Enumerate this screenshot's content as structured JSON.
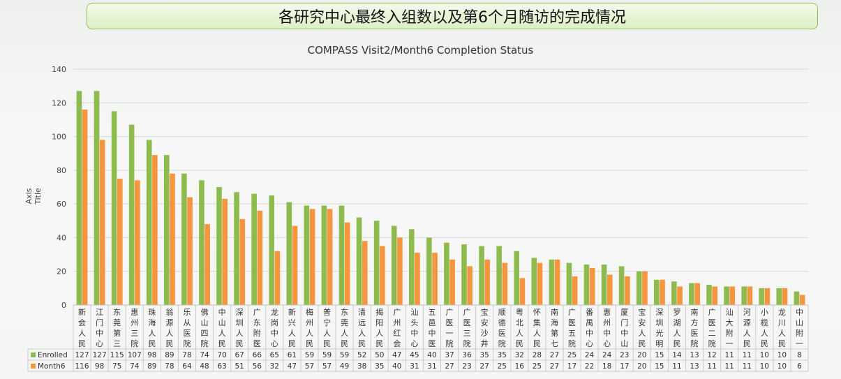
{
  "banner_title": "各研究中心最终入组数以及第6个月随访的完成情况",
  "chart_data": {
    "type": "bar",
    "title": "COMPASS Visit2/Month6 Completion Status",
    "ylabel": "Axis Title",
    "xlabel": "",
    "ylim": [
      0,
      140
    ],
    "yticks": [
      0,
      20,
      40,
      60,
      80,
      100,
      120,
      140
    ],
    "grid": true,
    "legend": "table-bottom",
    "categories": [
      "新会人民",
      "江门中心",
      "东莞第三",
      "惠州三院",
      "珠海人民",
      "翁源人民",
      "乐从医院",
      "佛山四院",
      "中山人民",
      "深圳人民",
      "广东附医",
      "龙岗中心",
      "新兴人民",
      "梅州人民",
      "普宁人民",
      "东莞人民",
      "清远人民",
      "揭阳人民",
      "广州红会",
      "汕头中心",
      "五邑中医",
      "广医一院",
      "广医三院",
      "宝安沙井",
      "顺德医院",
      "粤北人民",
      "怀集人民",
      "南海第七",
      "广医五院",
      "番禺中心",
      "惠州中心",
      "厦门中山",
      "宝安人民",
      "深圳光明",
      "罗湖人民",
      "南方医院",
      "广医二院",
      "汕大附一",
      "河源人民",
      "小榄人民",
      "龙川人民",
      "中山附一"
    ],
    "series": [
      {
        "name": "Enrolled",
        "color": "#8dbb4e",
        "values": [
          127,
          127,
          115,
          107,
          98,
          89,
          78,
          74,
          70,
          67,
          66,
          65,
          61,
          59,
          59,
          59,
          52,
          50,
          47,
          45,
          40,
          37,
          36,
          35,
          35,
          32,
          28,
          27,
          25,
          24,
          24,
          23,
          20,
          15,
          14,
          13,
          12,
          11,
          11,
          10,
          10,
          8
        ]
      },
      {
        "name": "Month6",
        "color": "#f5963f",
        "values": [
          116,
          98,
          75,
          74,
          89,
          78,
          64,
          48,
          63,
          51,
          56,
          32,
          47,
          57,
          57,
          49,
          38,
          35,
          40,
          31,
          31,
          27,
          23,
          27,
          25,
          16,
          25,
          27,
          17,
          22,
          18,
          17,
          20,
          15,
          11,
          13,
          11,
          11,
          11,
          10,
          10,
          6
        ]
      }
    ]
  }
}
